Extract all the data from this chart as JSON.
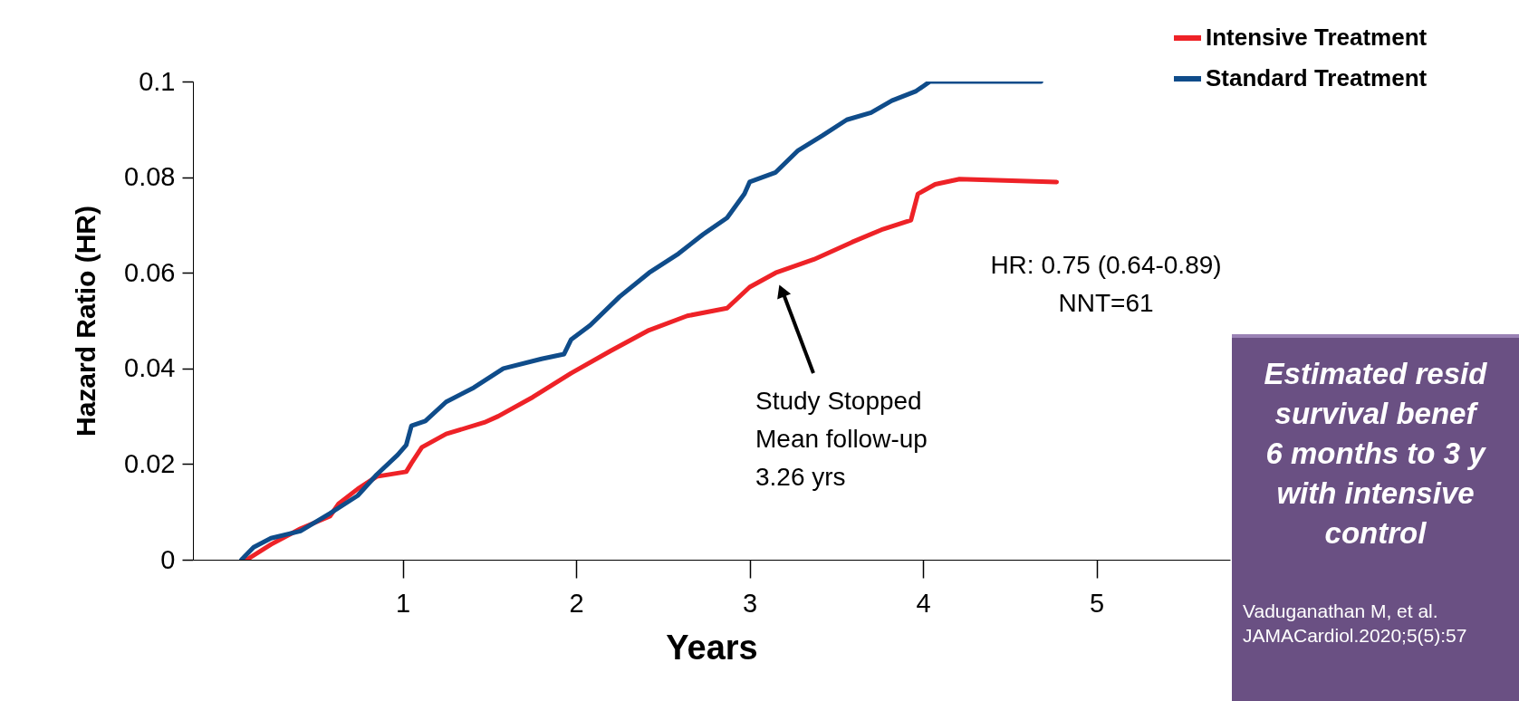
{
  "chart_data": {
    "type": "line",
    "xlabel": "Years",
    "ylabel": "Hazard Ratio (HR)",
    "xlim": [
      -0.21,
      5.77
    ],
    "xticks": [
      1,
      2,
      3,
      4,
      5
    ],
    "ylim": [
      0,
      0.1
    ],
    "yticks": [
      0,
      0.02,
      0.04,
      0.06,
      0.08,
      0.1
    ],
    "grid": false,
    "legend": "top right",
    "marker": "none",
    "line_style": "solid",
    "series": [
      {
        "name": "Intensive Treatment",
        "color": "#ee2227",
        "x": [
          0.1,
          0.24,
          0.41,
          0.58,
          0.63,
          0.74,
          0.85,
          1.02,
          1.05,
          1.11,
          1.25,
          1.47,
          1.55,
          1.75,
          1.97,
          2.2,
          2.42,
          2.64,
          2.87,
          3.0,
          3.15,
          3.37,
          3.59,
          3.76,
          3.93,
          3.97,
          4.07,
          4.21,
          4.77
        ],
        "values": [
          0,
          0.0032,
          0.0065,
          0.0091,
          0.0117,
          0.0148,
          0.0174,
          0.0184,
          0.0202,
          0.0235,
          0.0263,
          0.0287,
          0.03,
          0.034,
          0.039,
          0.0437,
          0.048,
          0.051,
          0.0526,
          0.057,
          0.06,
          0.0628,
          0.0664,
          0.069,
          0.071,
          0.0765,
          0.0785,
          0.0796,
          0.079
        ]
      },
      {
        "name": "Standard Treatment",
        "color": "#0f4c8a",
        "x": [
          0.07,
          0.14,
          0.24,
          0.41,
          0.58,
          0.74,
          0.85,
          0.97,
          1.02,
          1.05,
          1.13,
          1.25,
          1.41,
          1.58,
          1.8,
          1.93,
          1.97,
          2.08,
          2.25,
          2.42,
          2.59,
          2.73,
          2.87,
          2.97,
          3.0,
          3.15,
          3.28,
          3.42,
          3.56,
          3.7,
          3.82,
          3.96,
          4.04,
          4.26,
          4.68
        ],
        "values": [
          0,
          0.0026,
          0.0045,
          0.006,
          0.0097,
          0.0134,
          0.0178,
          0.0219,
          0.024,
          0.028,
          0.029,
          0.033,
          0.036,
          0.04,
          0.042,
          0.043,
          0.046,
          0.049,
          0.055,
          0.06,
          0.064,
          0.068,
          0.0715,
          0.0765,
          0.079,
          0.081,
          0.0856,
          0.0887,
          0.092,
          0.0935,
          0.096,
          0.098,
          0.1,
          0.1,
          0.1
        ]
      }
    ],
    "annotations": [
      "Study Stopped\nMean follow-up\n3.26 yrs",
      "HR: 0.75 (0.64-0.89)\nNNT=61",
      "Estimated resid\nsurvival benef\n6 months to 3 y\nwith intensive\ncontrol",
      "Vaduganathan M, et al.\nJAMACardiol.2020;5(5):57"
    ]
  }
}
